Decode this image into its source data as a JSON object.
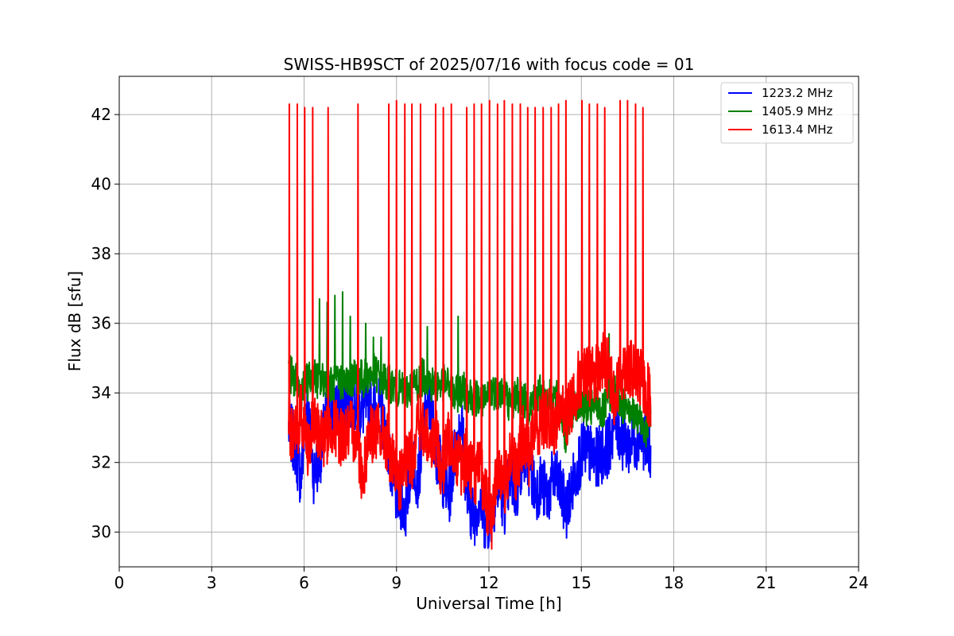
{
  "chart_data": {
    "type": "line",
    "title": "SWISS-HB9SCT of 2025/07/16 with focus code = 01",
    "xlabel": "Universal Time [h]",
    "ylabel": "Flux dB [sfu]",
    "xlim": [
      0,
      24
    ],
    "ylim": [
      29,
      43.1
    ],
    "xticks": [
      0,
      3,
      6,
      9,
      12,
      15,
      18,
      21,
      24
    ],
    "yticks": [
      30,
      32,
      34,
      36,
      38,
      40,
      42
    ],
    "grid": true,
    "legend_position": "top-right",
    "series": [
      {
        "name": "1223.2 MHz",
        "color": "#0000ff",
        "x": [
          5.5,
          5.7,
          5.9,
          6.1,
          6.3,
          6.5,
          6.7,
          6.9,
          7.1,
          7.3,
          7.5,
          7.7,
          7.9,
          8.1,
          8.3,
          8.5,
          8.7,
          8.9,
          9.1,
          9.3,
          9.5,
          9.7,
          9.9,
          10.1,
          10.3,
          10.5,
          10.7,
          10.9,
          11.1,
          11.3,
          11.5,
          11.7,
          11.9,
          12.1,
          12.3,
          12.5,
          12.7,
          12.9,
          13.1,
          13.3,
          13.5,
          13.7,
          13.9,
          14.1,
          14.3,
          14.5,
          14.7,
          14.9,
          15.1,
          15.3,
          15.5,
          15.7,
          15.9,
          16.1,
          16.3,
          16.5,
          16.7,
          16.9,
          17.1,
          17.25
        ],
        "values": [
          33.0,
          32.5,
          31.5,
          33.9,
          31.7,
          32.1,
          33.2,
          33.5,
          33.6,
          33.7,
          33.8,
          33.5,
          33.5,
          33.7,
          33.6,
          33.5,
          32.7,
          31.2,
          31.0,
          30.6,
          32.2,
          31.5,
          33.2,
          33.7,
          32.3,
          31.6,
          31.0,
          32.3,
          33.3,
          31.0,
          30.4,
          31.0,
          30.2,
          30.6,
          31.4,
          30.8,
          31.6,
          31.1,
          32.3,
          31.9,
          31.2,
          31.4,
          31.0,
          31.6,
          31.3,
          30.6,
          31.3,
          32.0,
          32.4,
          32.2,
          32.1,
          32.3,
          32.5,
          33.3,
          32.7,
          32.5,
          32.6,
          32.8,
          32.6,
          32.4
        ]
      },
      {
        "name": "1405.9 MHz",
        "color": "#008000",
        "x": [
          5.5,
          5.7,
          5.9,
          6.1,
          6.3,
          6.5,
          6.7,
          6.9,
          7.1,
          7.3,
          7.5,
          7.7,
          7.9,
          8.1,
          8.3,
          8.5,
          8.7,
          8.9,
          9.1,
          9.3,
          9.5,
          9.7,
          9.9,
          10.1,
          10.3,
          10.5,
          10.7,
          10.9,
          11.1,
          11.3,
          11.5,
          11.7,
          11.9,
          12.1,
          12.3,
          12.5,
          12.7,
          12.9,
          13.1,
          13.3,
          13.5,
          13.7,
          13.9,
          14.1,
          14.3,
          14.5,
          14.7,
          14.9,
          15.1,
          15.3,
          15.5,
          15.7,
          15.9,
          16.1,
          16.3,
          16.5,
          16.7,
          16.9,
          17.1,
          17.25
        ],
        "values": [
          34.6,
          34.4,
          34.0,
          34.3,
          34.5,
          34.3,
          34.4,
          34.2,
          34.3,
          34.3,
          34.4,
          34.5,
          34.4,
          34.5,
          34.6,
          34.4,
          34.3,
          34.2,
          34.1,
          34.0,
          34.2,
          34.3,
          34.5,
          34.3,
          34.2,
          34.3,
          34.2,
          33.9,
          34.1,
          34.0,
          33.9,
          33.8,
          33.7,
          34.1,
          34.0,
          34.1,
          33.6,
          34.0,
          33.8,
          33.6,
          33.9,
          34.0,
          33.8,
          33.9,
          33.7,
          32.7,
          33.5,
          33.8,
          33.6,
          33.5,
          33.7,
          33.4,
          33.9,
          34.0,
          33.6,
          33.8,
          33.3,
          33.2,
          33.0,
          33.5
        ]
      },
      {
        "name": "1613.4 MHz",
        "color": "#ff0000",
        "x": [
          5.5,
          5.7,
          5.9,
          6.1,
          6.3,
          6.5,
          6.7,
          6.9,
          7.1,
          7.3,
          7.5,
          7.7,
          7.9,
          8.1,
          8.3,
          8.5,
          8.7,
          8.9,
          9.1,
          9.3,
          9.5,
          9.7,
          9.9,
          10.1,
          10.3,
          10.5,
          10.7,
          10.9,
          11.1,
          11.3,
          11.5,
          11.7,
          11.9,
          12.1,
          12.3,
          12.5,
          12.7,
          12.9,
          13.1,
          13.3,
          13.5,
          13.7,
          13.9,
          14.1,
          14.3,
          14.5,
          14.7,
          14.9,
          15.1,
          15.3,
          15.5,
          15.7,
          15.9,
          16.1,
          16.3,
          16.5,
          16.7,
          16.9,
          17.1,
          17.25
        ],
        "values": [
          33.2,
          32.6,
          33.5,
          32.4,
          33.0,
          32.9,
          32.7,
          33.1,
          32.8,
          32.8,
          32.9,
          32.8,
          31.6,
          32.8,
          32.9,
          32.8,
          32.6,
          31.8,
          31.4,
          32.0,
          32.1,
          33.2,
          32.8,
          32.7,
          32.6,
          31.6,
          32.8,
          32.3,
          31.9,
          32.2,
          31.6,
          31.8,
          31.0,
          30.3,
          32.1,
          31.2,
          32.3,
          31.6,
          32.8,
          32.2,
          33.0,
          33.2,
          33.3,
          33.0,
          33.5,
          33.2,
          33.8,
          34.3,
          34.4,
          34.5,
          34.6,
          34.9,
          34.7,
          33.8,
          34.6,
          34.8,
          34.5,
          34.4,
          34.1,
          33.8
        ]
      }
    ],
    "calibration_spikes": {
      "series": "1613.4 MHz",
      "x": [
        5.52,
        5.78,
        6.02,
        6.28,
        6.78,
        7.75,
        8.75,
        9.0,
        9.27,
        9.5,
        9.78,
        10.27,
        10.52,
        10.78,
        11.28,
        11.52,
        11.76,
        12.02,
        12.28,
        12.5,
        12.76,
        13.02,
        13.26,
        13.5,
        13.76,
        14.02,
        14.26,
        14.5,
        15.02,
        15.26,
        15.52,
        15.76,
        16.26,
        16.5,
        16.76,
        17.0
      ],
      "values": [
        42.3,
        42.3,
        42.2,
        42.2,
        42.2,
        42.3,
        42.3,
        42.4,
        42.3,
        42.3,
        42.3,
        42.3,
        42.2,
        42.3,
        42.2,
        42.3,
        42.3,
        42.4,
        42.3,
        42.4,
        42.3,
        42.3,
        42.2,
        42.2,
        42.2,
        42.2,
        42.3,
        42.4,
        42.4,
        42.3,
        42.3,
        42.2,
        42.4,
        42.4,
        42.3,
        42.2
      ]
    },
    "green_peaks": {
      "series": "1405.9 MHz",
      "x": [
        6.5,
        6.75,
        7.0,
        7.25,
        7.5,
        8.0,
        8.25,
        8.5,
        8.75,
        10.0,
        11.0,
        15.9
      ],
      "values": [
        36.7,
        36.6,
        36.8,
        36.9,
        36.2,
        36.0,
        35.6,
        35.6,
        35.3,
        35.9,
        36.2,
        35.7
      ]
    }
  }
}
